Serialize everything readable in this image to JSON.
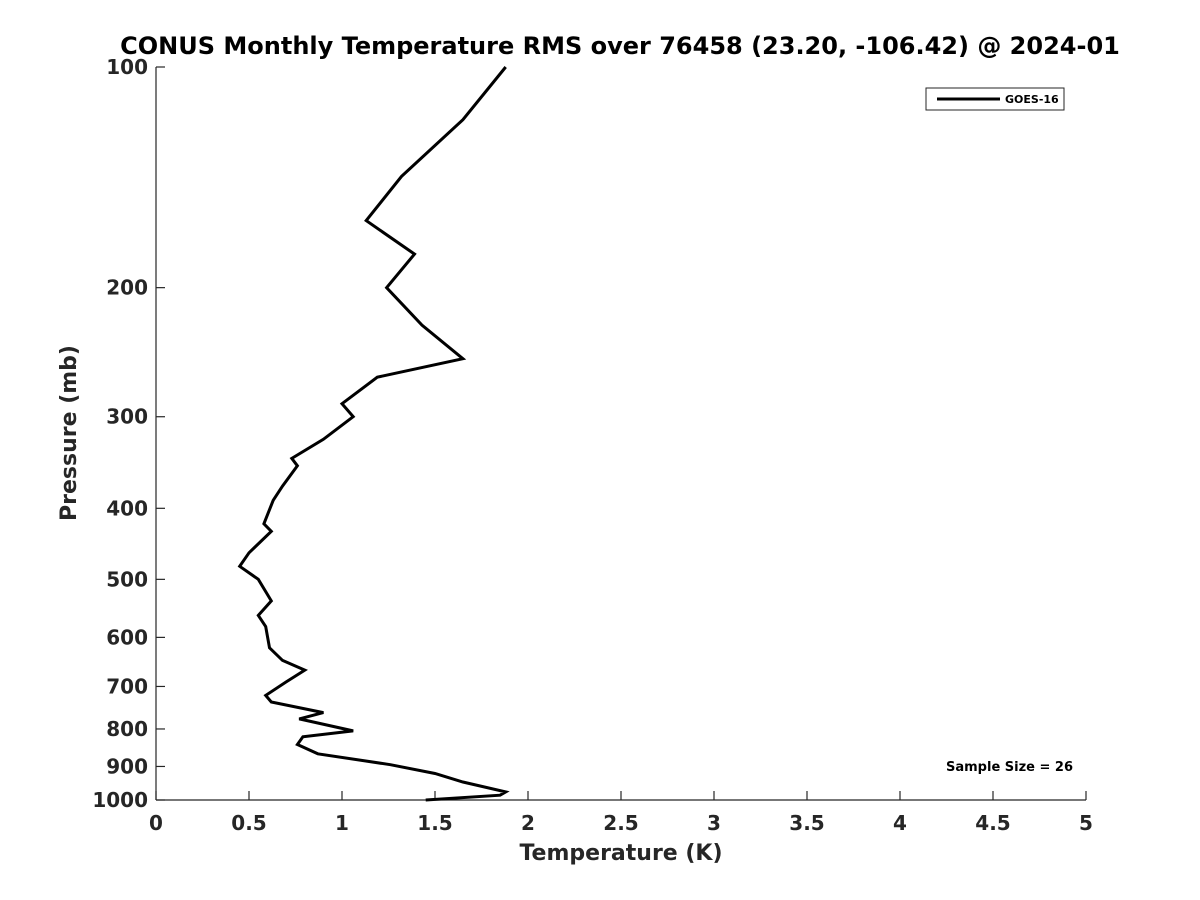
{
  "chart_data": {
    "type": "line",
    "title": "CONUS Monthly Temperature RMS over 76458 (23.20, -106.42) @ 2024-01",
    "xlabel": "Temperature (K)",
    "ylabel": "Pressure (mb)",
    "xlim": [
      0,
      5
    ],
    "ylim": [
      100,
      1000
    ],
    "yscale": "log",
    "yreversed": true,
    "grid": false,
    "legend_position": "top-right",
    "x_ticks": [
      "0",
      "0.5",
      "1",
      "1.5",
      "2",
      "2.5",
      "3",
      "3.5",
      "4",
      "4.5",
      "5"
    ],
    "y_ticks": [
      "100",
      "200",
      "300",
      "400",
      "500",
      "600",
      "700",
      "800",
      "900",
      "1000"
    ],
    "annotation": "Sample Size = 26",
    "series": [
      {
        "name": "GOES-16",
        "color": "#000000",
        "points": [
          [
            1.88,
            100
          ],
          [
            1.65,
            118
          ],
          [
            1.32,
            141
          ],
          [
            1.13,
            162
          ],
          [
            1.39,
            180
          ],
          [
            1.24,
            200
          ],
          [
            1.43,
            225
          ],
          [
            1.65,
            250
          ],
          [
            1.19,
            265
          ],
          [
            1.0,
            288
          ],
          [
            1.06,
            300
          ],
          [
            0.9,
            322
          ],
          [
            0.73,
            342
          ],
          [
            0.76,
            350
          ],
          [
            0.68,
            373
          ],
          [
            0.63,
            390
          ],
          [
            0.58,
            420
          ],
          [
            0.62,
            430
          ],
          [
            0.5,
            460
          ],
          [
            0.45,
            480
          ],
          [
            0.55,
            500
          ],
          [
            0.62,
            535
          ],
          [
            0.55,
            560
          ],
          [
            0.59,
            580
          ],
          [
            0.61,
            620
          ],
          [
            0.68,
            645
          ],
          [
            0.8,
            665
          ],
          [
            0.7,
            690
          ],
          [
            0.59,
            720
          ],
          [
            0.62,
            735
          ],
          [
            0.9,
            760
          ],
          [
            0.77,
            775
          ],
          [
            1.06,
            805
          ],
          [
            0.79,
            820
          ],
          [
            0.76,
            840
          ],
          [
            0.87,
            865
          ],
          [
            1.26,
            895
          ],
          [
            1.5,
            920
          ],
          [
            1.65,
            945
          ],
          [
            1.88,
            975
          ],
          [
            1.85,
            985
          ],
          [
            1.45,
            1000
          ]
        ]
      }
    ]
  }
}
